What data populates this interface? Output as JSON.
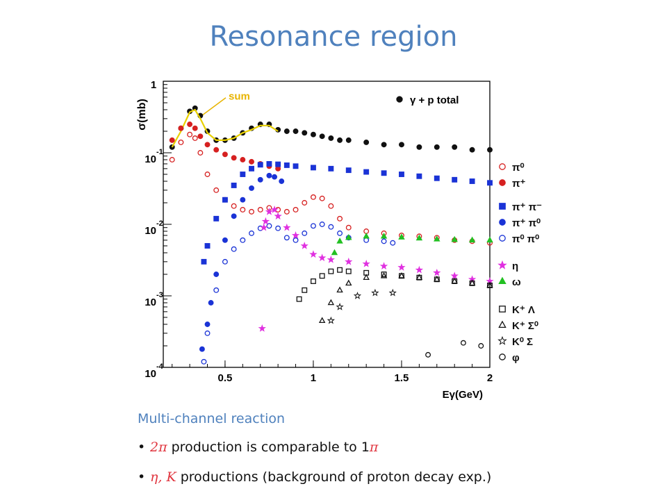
{
  "slide": {
    "title": "Resonance region",
    "subheading": "Multi-channel reaction",
    "bullets": [
      {
        "highlight": "2π",
        "text": " production is comparable to 1",
        "highlight2": "π"
      },
      {
        "highlight": "η, K",
        "text": " productions (background of proton decay exp.)"
      }
    ]
  },
  "chart_data": {
    "type": "scatter",
    "xlabel": "Eγ(GeV)",
    "ylabel": "σ(mb)",
    "xlim": [
      0.15,
      2.0
    ],
    "ylim": [
      0.0001,
      1
    ],
    "yscale": "log",
    "xticks": [
      "0.5",
      "1",
      "1.5",
      "2"
    ],
    "yticks": [
      {
        "base": "10",
        "exp": "-1",
        "value": 0.1
      },
      {
        "base": "10",
        "exp": "-2",
        "value": 0.01
      },
      {
        "base": "10",
        "exp": "-3",
        "value": 0.001
      },
      {
        "base": "10",
        "exp": "-4",
        "value": 0.0001
      }
    ],
    "ytop_label": "1",
    "annotations": [
      {
        "text": "sum",
        "color": "#e8b400"
      }
    ],
    "legend_main": "γ + p  total",
    "legend": [
      {
        "label": "π⁰",
        "marker": "circle-open",
        "color": "#d62020"
      },
      {
        "label": "π⁺",
        "marker": "circle",
        "color": "#d62020"
      },
      {
        "label": "π⁺ π⁻",
        "marker": "square",
        "color": "#1a33d6"
      },
      {
        "label": "π⁺ π⁰",
        "marker": "circle",
        "color": "#1a33d6"
      },
      {
        "label": "π⁰ π⁰",
        "marker": "circle-open",
        "color": "#1a33d6"
      },
      {
        "label": "η",
        "marker": "star",
        "color": "#e030e0"
      },
      {
        "label": "ω",
        "marker": "triangle",
        "color": "#22c022"
      },
      {
        "label": "K⁺ Λ",
        "marker": "square-open",
        "color": "#111111"
      },
      {
        "label": "K⁺ Σ⁰",
        "marker": "triangle-open",
        "color": "#111111"
      },
      {
        "label": "K⁰ Σ",
        "marker": "star-open",
        "color": "#111111"
      },
      {
        "label": "φ",
        "marker": "circle-open",
        "color": "#111111"
      }
    ],
    "series": [
      {
        "name": "γ + p  total",
        "marker": "circle",
        "color": "#111111",
        "points": [
          [
            0.2,
            0.12
          ],
          [
            0.25,
            0.22
          ],
          [
            0.3,
            0.38
          ],
          [
            0.33,
            0.42
          ],
          [
            0.36,
            0.33
          ],
          [
            0.4,
            0.2
          ],
          [
            0.45,
            0.15
          ],
          [
            0.5,
            0.15
          ],
          [
            0.55,
            0.16
          ],
          [
            0.6,
            0.19
          ],
          [
            0.65,
            0.22
          ],
          [
            0.7,
            0.25
          ],
          [
            0.75,
            0.25
          ],
          [
            0.8,
            0.21
          ],
          [
            0.85,
            0.2
          ],
          [
            0.9,
            0.2
          ],
          [
            0.95,
            0.19
          ],
          [
            1.0,
            0.18
          ],
          [
            1.05,
            0.17
          ],
          [
            1.1,
            0.16
          ],
          [
            1.15,
            0.15
          ],
          [
            1.2,
            0.15
          ],
          [
            1.3,
            0.14
          ],
          [
            1.4,
            0.13
          ],
          [
            1.5,
            0.13
          ],
          [
            1.6,
            0.12
          ],
          [
            1.7,
            0.12
          ],
          [
            1.8,
            0.12
          ],
          [
            1.9,
            0.11
          ],
          [
            2.0,
            0.11
          ]
        ]
      },
      {
        "name": "sum",
        "marker": "line",
        "color": "#e8d000",
        "points": [
          [
            0.2,
            0.12
          ],
          [
            0.25,
            0.2
          ],
          [
            0.3,
            0.37
          ],
          [
            0.33,
            0.4
          ],
          [
            0.36,
            0.3
          ],
          [
            0.4,
            0.19
          ],
          [
            0.45,
            0.15
          ],
          [
            0.5,
            0.15
          ],
          [
            0.55,
            0.16
          ],
          [
            0.6,
            0.19
          ],
          [
            0.65,
            0.21
          ],
          [
            0.7,
            0.24
          ],
          [
            0.75,
            0.24
          ],
          [
            0.8,
            0.2
          ]
        ]
      },
      {
        "name": "π⁰",
        "marker": "circle-open",
        "color": "#d62020",
        "points": [
          [
            0.2,
            0.08
          ],
          [
            0.25,
            0.14
          ],
          [
            0.3,
            0.18
          ],
          [
            0.33,
            0.16
          ],
          [
            0.36,
            0.1
          ],
          [
            0.4,
            0.05
          ],
          [
            0.45,
            0.03
          ],
          [
            0.5,
            0.022
          ],
          [
            0.55,
            0.018
          ],
          [
            0.6,
            0.016
          ],
          [
            0.65,
            0.015
          ],
          [
            0.7,
            0.016
          ],
          [
            0.75,
            0.017
          ],
          [
            0.8,
            0.016
          ],
          [
            0.85,
            0.015
          ],
          [
            0.9,
            0.016
          ],
          [
            0.95,
            0.02
          ],
          [
            1.0,
            0.024
          ],
          [
            1.05,
            0.023
          ],
          [
            1.1,
            0.018
          ],
          [
            1.15,
            0.012
          ],
          [
            1.2,
            0.009
          ],
          [
            1.3,
            0.008
          ],
          [
            1.4,
            0.0075
          ],
          [
            1.5,
            0.007
          ],
          [
            1.6,
            0.0068
          ],
          [
            1.7,
            0.0065
          ],
          [
            1.8,
            0.006
          ],
          [
            1.9,
            0.0058
          ],
          [
            2.0,
            0.0055
          ]
        ]
      },
      {
        "name": "π⁺",
        "marker": "circle",
        "color": "#d62020",
        "points": [
          [
            0.2,
            0.15
          ],
          [
            0.25,
            0.22
          ],
          [
            0.3,
            0.25
          ],
          [
            0.33,
            0.22
          ],
          [
            0.36,
            0.17
          ],
          [
            0.4,
            0.13
          ],
          [
            0.45,
            0.11
          ],
          [
            0.5,
            0.095
          ],
          [
            0.55,
            0.085
          ],
          [
            0.6,
            0.08
          ],
          [
            0.65,
            0.075
          ],
          [
            0.7,
            0.07
          ],
          [
            0.75,
            0.065
          ],
          [
            0.8,
            0.06
          ]
        ]
      },
      {
        "name": "π⁺ π⁻",
        "marker": "square",
        "color": "#1a33d6",
        "points": [
          [
            0.38,
            0.003
          ],
          [
            0.4,
            0.005
          ],
          [
            0.45,
            0.012
          ],
          [
            0.5,
            0.022
          ],
          [
            0.55,
            0.035
          ],
          [
            0.6,
            0.05
          ],
          [
            0.65,
            0.06
          ],
          [
            0.7,
            0.068
          ],
          [
            0.75,
            0.07
          ],
          [
            0.8,
            0.069
          ],
          [
            0.85,
            0.067
          ],
          [
            0.9,
            0.065
          ],
          [
            1.0,
            0.062
          ],
          [
            1.1,
            0.06
          ],
          [
            1.2,
            0.057
          ],
          [
            1.3,
            0.054
          ],
          [
            1.4,
            0.052
          ],
          [
            1.5,
            0.05
          ],
          [
            1.6,
            0.047
          ],
          [
            1.7,
            0.044
          ],
          [
            1.8,
            0.042
          ],
          [
            1.9,
            0.04
          ],
          [
            2.0,
            0.038
          ]
        ]
      },
      {
        "name": "π⁺ π⁰",
        "marker": "circle",
        "color": "#1a33d6",
        "points": [
          [
            0.37,
            0.00018
          ],
          [
            0.4,
            0.0004
          ],
          [
            0.42,
            0.0008
          ],
          [
            0.45,
            0.002
          ],
          [
            0.5,
            0.006
          ],
          [
            0.55,
            0.013
          ],
          [
            0.6,
            0.022
          ],
          [
            0.65,
            0.032
          ],
          [
            0.7,
            0.042
          ],
          [
            0.75,
            0.048
          ],
          [
            0.78,
            0.046
          ],
          [
            0.82,
            0.04
          ]
        ]
      },
      {
        "name": "π⁰ π⁰",
        "marker": "circle-open",
        "color": "#1a33d6",
        "points": [
          [
            0.38,
            0.00012
          ],
          [
            0.4,
            0.0003
          ],
          [
            0.45,
            0.0012
          ],
          [
            0.5,
            0.003
          ],
          [
            0.55,
            0.0045
          ],
          [
            0.6,
            0.006
          ],
          [
            0.65,
            0.0075
          ],
          [
            0.7,
            0.0088
          ],
          [
            0.75,
            0.0095
          ],
          [
            0.8,
            0.0088
          ],
          [
            0.85,
            0.0065
          ],
          [
            0.9,
            0.006
          ],
          [
            0.95,
            0.0075
          ],
          [
            1.0,
            0.0095
          ],
          [
            1.05,
            0.01
          ],
          [
            1.1,
            0.0092
          ],
          [
            1.15,
            0.0075
          ],
          [
            1.2,
            0.0065
          ],
          [
            1.3,
            0.006
          ],
          [
            1.4,
            0.0058
          ],
          [
            1.45,
            0.0055
          ]
        ]
      },
      {
        "name": "η",
        "marker": "star",
        "color": "#e030e0",
        "points": [
          [
            0.71,
            0.00035
          ],
          [
            0.72,
            0.009
          ],
          [
            0.73,
            0.011
          ],
          [
            0.75,
            0.015
          ],
          [
            0.78,
            0.016
          ],
          [
            0.8,
            0.013
          ],
          [
            0.85,
            0.009
          ],
          [
            0.9,
            0.007
          ],
          [
            0.95,
            0.005
          ],
          [
            1.0,
            0.0038
          ],
          [
            1.05,
            0.0034
          ],
          [
            1.1,
            0.0032
          ],
          [
            1.2,
            0.003
          ],
          [
            1.3,
            0.0028
          ],
          [
            1.4,
            0.0026
          ],
          [
            1.5,
            0.0025
          ],
          [
            1.6,
            0.0023
          ],
          [
            1.7,
            0.0021
          ],
          [
            1.8,
            0.0019
          ],
          [
            1.9,
            0.0017
          ],
          [
            2.0,
            0.0016
          ]
        ]
      },
      {
        "name": "ω",
        "marker": "triangle",
        "color": "#22c022",
        "points": [
          [
            1.12,
            0.004
          ],
          [
            1.15,
            0.0058
          ],
          [
            1.2,
            0.0065
          ],
          [
            1.3,
            0.0068
          ],
          [
            1.4,
            0.0068
          ],
          [
            1.5,
            0.0066
          ],
          [
            1.6,
            0.0064
          ],
          [
            1.7,
            0.0062
          ],
          [
            1.8,
            0.0061
          ],
          [
            1.9,
            0.006
          ],
          [
            2.0,
            0.006
          ]
        ]
      },
      {
        "name": "K⁺ Λ",
        "marker": "square-open",
        "color": "#111111",
        "points": [
          [
            0.92,
            0.0009
          ],
          [
            0.95,
            0.0012
          ],
          [
            1.0,
            0.0016
          ],
          [
            1.05,
            0.0019
          ],
          [
            1.1,
            0.0022
          ],
          [
            1.15,
            0.0023
          ],
          [
            1.2,
            0.0022
          ],
          [
            1.3,
            0.0021
          ],
          [
            1.4,
            0.002
          ],
          [
            1.5,
            0.0019
          ],
          [
            1.6,
            0.0018
          ],
          [
            1.7,
            0.0017
          ],
          [
            1.8,
            0.0016
          ],
          [
            1.9,
            0.0015
          ],
          [
            2.0,
            0.0014
          ]
        ]
      },
      {
        "name": "K⁺ Σ⁰",
        "marker": "triangle-open",
        "color": "#111111",
        "points": [
          [
            1.05,
            0.00045
          ],
          [
            1.1,
            0.0008
          ],
          [
            1.15,
            0.0012
          ],
          [
            1.2,
            0.0015
          ],
          [
            1.3,
            0.0018
          ],
          [
            1.4,
            0.0019
          ],
          [
            1.5,
            0.0019
          ],
          [
            1.6,
            0.0018
          ],
          [
            1.7,
            0.0017
          ],
          [
            1.8,
            0.0016
          ],
          [
            1.9,
            0.0015
          ],
          [
            2.0,
            0.0014
          ]
        ]
      },
      {
        "name": "K⁰ Σ",
        "marker": "star-open",
        "color": "#111111",
        "points": [
          [
            1.1,
            0.00045
          ],
          [
            1.15,
            0.0007
          ],
          [
            1.25,
            0.001
          ],
          [
            1.35,
            0.0011
          ],
          [
            1.45,
            0.0011
          ]
        ]
      },
      {
        "name": "φ",
        "marker": "circle-open",
        "color": "#111111",
        "points": [
          [
            1.65,
            0.00015
          ],
          [
            1.85,
            0.00022
          ],
          [
            1.95,
            0.0002
          ]
        ]
      }
    ]
  }
}
